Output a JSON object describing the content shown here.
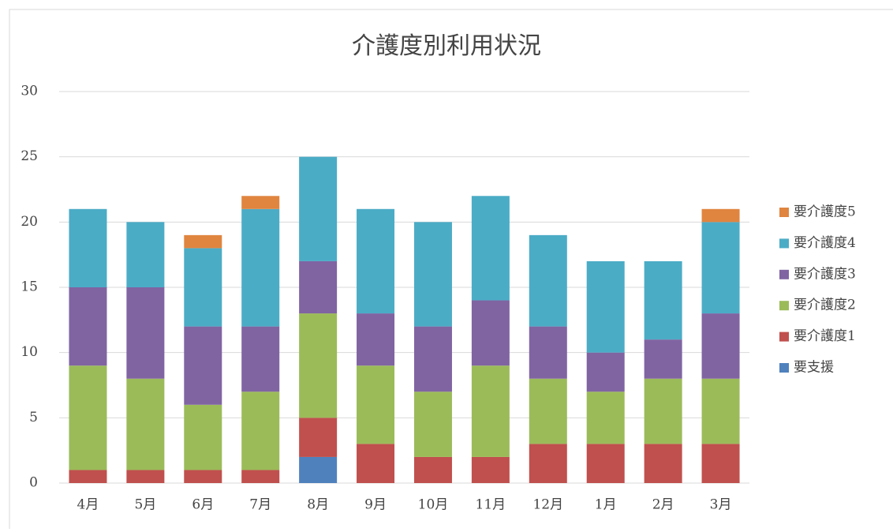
{
  "chart_data": {
    "type": "bar",
    "stacked": true,
    "title": "介護度別利用状況",
    "categories": [
      "4月",
      "5月",
      "6月",
      "7月",
      "8月",
      "9月",
      "10月",
      "11月",
      "12月",
      "1月",
      "2月",
      "3月"
    ],
    "series": [
      {
        "name": "要支援",
        "color": "#4f81bd",
        "values": [
          0,
          0,
          0,
          0,
          2,
          0,
          0,
          0,
          0,
          0,
          0,
          0
        ]
      },
      {
        "name": "要介護度1",
        "color": "#c0504d",
        "values": [
          1,
          1,
          1,
          1,
          3,
          3,
          2,
          2,
          3,
          3,
          3,
          3
        ]
      },
      {
        "name": "要介護度2",
        "color": "#9bbb59",
        "values": [
          8,
          7,
          5,
          6,
          8,
          6,
          5,
          7,
          5,
          4,
          5,
          5
        ]
      },
      {
        "name": "要介護度3",
        "color": "#8064a2",
        "values": [
          6,
          7,
          6,
          5,
          4,
          4,
          5,
          5,
          4,
          3,
          3,
          5
        ]
      },
      {
        "name": "要介護度4",
        "color": "#4bacc6",
        "values": [
          6,
          5,
          6,
          9,
          8,
          8,
          8,
          8,
          7,
          7,
          6,
          7
        ]
      },
      {
        "name": "要介護度5",
        "color": "#e0853f",
        "values": [
          0,
          0,
          1,
          1,
          0,
          0,
          0,
          0,
          0,
          0,
          0,
          1
        ]
      }
    ],
    "ylim": [
      0,
      30
    ],
    "yticks": [
      0,
      5,
      10,
      15,
      20,
      25,
      30
    ],
    "grid": true,
    "legend": "right"
  }
}
